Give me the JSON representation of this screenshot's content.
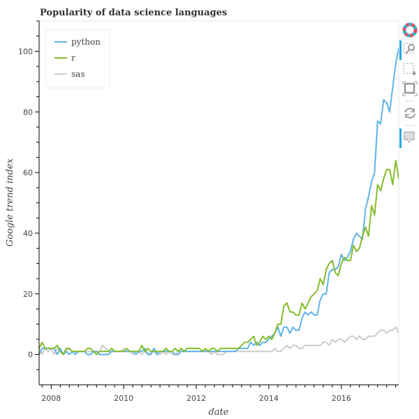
{
  "chart_data": {
    "type": "line",
    "title": "Popularity of data science languages",
    "xlabel": "date",
    "ylabel": "Google trend index",
    "xlim": [
      "2007-09",
      "2017-08"
    ],
    "ylim": [
      -10,
      110
    ],
    "grid": false,
    "legend_placement": "top-left",
    "x_ticks": [
      "2008",
      "2010",
      "2012",
      "2014",
      "2016"
    ],
    "y_ticks": [
      "0",
      "20",
      "40",
      "60",
      "80",
      "100"
    ],
    "x_start": "2007-09",
    "x_step": "1 month",
    "series": [
      {
        "name": "python",
        "color": "#5db3e8",
        "values": [
          0,
          2,
          2,
          2,
          2,
          2,
          0,
          2,
          0,
          1,
          0,
          1,
          0,
          1,
          1,
          1,
          0,
          0,
          1,
          1,
          0,
          0,
          0,
          0,
          1,
          1,
          1,
          1,
          1,
          1,
          1,
          1,
          0,
          1,
          1,
          2,
          0,
          0,
          2,
          0,
          1,
          1,
          1,
          1,
          1,
          0,
          0,
          1,
          1,
          1,
          1,
          1,
          1,
          1,
          1,
          1,
          1,
          1,
          1,
          1,
          1,
          1,
          1,
          1,
          1,
          1,
          2,
          2,
          2,
          2,
          4,
          3,
          4,
          3,
          4,
          4,
          5,
          6,
          7,
          9,
          6,
          9,
          9,
          7,
          9,
          8,
          8,
          12,
          14,
          13,
          14,
          13,
          13,
          18,
          20,
          20,
          27,
          28,
          28,
          29,
          33,
          31,
          32,
          34,
          38,
          40,
          39,
          38,
          48,
          52,
          57,
          60,
          77,
          76,
          84,
          83,
          80,
          88,
          96,
          101
        ]
      },
      {
        "name": "r",
        "color": "#84bc2c",
        "values": [
          2,
          4,
          2,
          2,
          2,
          2,
          3,
          1,
          0,
          2,
          2,
          1,
          1,
          1,
          1,
          1,
          2,
          2,
          1,
          0,
          1,
          1,
          1,
          1,
          2,
          1,
          1,
          1,
          1,
          2,
          1,
          1,
          1,
          1,
          3,
          1,
          2,
          1,
          1,
          1,
          1,
          1,
          2,
          1,
          1,
          2,
          1,
          2,
          1,
          2,
          2,
          2,
          2,
          2,
          1,
          2,
          1,
          2,
          2,
          1,
          2,
          2,
          2,
          2,
          2,
          2,
          2,
          3,
          4,
          4,
          5,
          6,
          3,
          4,
          6,
          5,
          6,
          5,
          7,
          10,
          10,
          16,
          17,
          14,
          14,
          13,
          13,
          17,
          15,
          17,
          19,
          20,
          21,
          25,
          23,
          28,
          30,
          31,
          27,
          26,
          30,
          32,
          31,
          31,
          36,
          34,
          35,
          39,
          42,
          39,
          49,
          46,
          56,
          54,
          58,
          61,
          61,
          56,
          64,
          58
        ]
      },
      {
        "name": "sas",
        "color": "#cccccc",
        "values": [
          2,
          0,
          2,
          1,
          2,
          0,
          2,
          1,
          0,
          1,
          2,
          1,
          1,
          1,
          1,
          1,
          1,
          1,
          1,
          1,
          1,
          3,
          2,
          1,
          1,
          1,
          1,
          1,
          2,
          1,
          1,
          0,
          1,
          1,
          0,
          1,
          0,
          1,
          1,
          0,
          0,
          1,
          0,
          1,
          0,
          0,
          1,
          1,
          1,
          1,
          1,
          1,
          1,
          1,
          1,
          1,
          1,
          0,
          1,
          0,
          0,
          0,
          1,
          1,
          1,
          1,
          1,
          1,
          1,
          1,
          1,
          1,
          1,
          1,
          1,
          1,
          1,
          1,
          2,
          1,
          1,
          2,
          3,
          2,
          3,
          3,
          2,
          2,
          3,
          3,
          3,
          3,
          3,
          3,
          4,
          4,
          3,
          5,
          4,
          5,
          5,
          4,
          5,
          6,
          6,
          5,
          6,
          5,
          5,
          6,
          6,
          6,
          7,
          8,
          8,
          7,
          8,
          8,
          9,
          7
        ]
      }
    ]
  },
  "toolbar": {
    "tools": [
      "bokeh-logo",
      "box-zoom",
      "box-select",
      "resize",
      "reset",
      "hover"
    ],
    "active_color": "#26aae1"
  }
}
